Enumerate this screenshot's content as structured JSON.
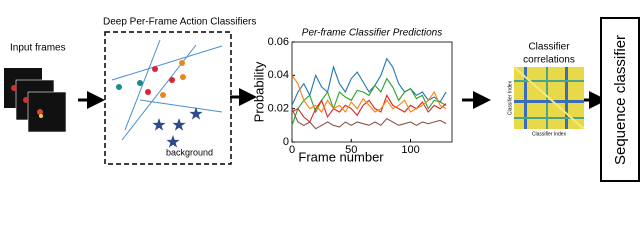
{
  "input_frames": {
    "label": "Input frames"
  },
  "classifiers": {
    "title": "Deep Per-Frame Action Classifiers",
    "background_label": "background"
  },
  "chart": {
    "type": "line",
    "title": "Per-frame Classifier Predictions",
    "x_label": "Frame number",
    "y_label": "Probability",
    "x": [
      0,
      5,
      10,
      15,
      20,
      25,
      30,
      35,
      40,
      45,
      50,
      55,
      60,
      65,
      70,
      75,
      80,
      85,
      90,
      95,
      100,
      105,
      110,
      115,
      120,
      125,
      130
    ],
    "xlim": [
      0,
      135
    ],
    "ylim": [
      0,
      0.06
    ],
    "xticks": [
      0,
      50,
      100
    ],
    "yticks": [
      0,
      0.02,
      0.04,
      0.06
    ],
    "series": [
      {
        "color": "#1f77b4",
        "values": [
          0.022,
          0.03,
          0.035,
          0.028,
          0.04,
          0.033,
          0.03,
          0.045,
          0.035,
          0.03,
          0.038,
          0.042,
          0.036,
          0.03,
          0.034,
          0.04,
          0.05,
          0.045,
          0.035,
          0.03,
          0.032,
          0.028,
          0.03,
          0.025,
          0.027,
          0.024,
          0.03
        ]
      },
      {
        "color": "#2ca02c",
        "values": [
          0.01,
          0.02,
          0.025,
          0.028,
          0.018,
          0.025,
          0.03,
          0.02,
          0.03,
          0.027,
          0.025,
          0.031,
          0.03,
          0.028,
          0.034,
          0.03,
          0.038,
          0.033,
          0.025,
          0.03,
          0.032,
          0.026,
          0.028,
          0.02,
          0.025,
          0.024,
          0.022
        ]
      },
      {
        "color": "#d62728",
        "values": [
          0.018,
          0.02,
          0.015,
          0.012,
          0.02,
          0.025,
          0.015,
          0.02,
          0.018,
          0.022,
          0.02,
          0.016,
          0.022,
          0.025,
          0.02,
          0.018,
          0.028,
          0.022,
          0.02,
          0.018,
          0.022,
          0.02,
          0.024,
          0.018,
          0.022,
          0.02,
          0.023
        ]
      },
      {
        "color": "#ff7f0e",
        "values": [
          0.04,
          0.035,
          0.025,
          0.02,
          0.022,
          0.018,
          0.025,
          0.02,
          0.022,
          0.018,
          0.024,
          0.02,
          0.026,
          0.022,
          0.018,
          0.02,
          0.025,
          0.02,
          0.022,
          0.025,
          0.018,
          0.02,
          0.022,
          0.025,
          0.03,
          0.022,
          0.02
        ]
      },
      {
        "color": "#8c564b",
        "values": [
          0.02,
          0.012,
          0.01,
          0.012,
          0.008,
          0.01,
          0.012,
          0.01,
          0.009,
          0.012,
          0.01,
          0.012,
          0.011,
          0.01,
          0.012,
          0.01,
          0.014,
          0.012,
          0.01,
          0.011,
          0.012,
          0.01,
          0.012,
          0.011,
          0.012,
          0.013,
          0.011
        ]
      }
    ]
  },
  "correlations": {
    "title": [
      "Classifier",
      "correlations"
    ],
    "x_label": "Classifier Index",
    "y_label": "Classifier Index"
  },
  "sequence_classifier": {
    "label": "Sequence classifier"
  }
}
